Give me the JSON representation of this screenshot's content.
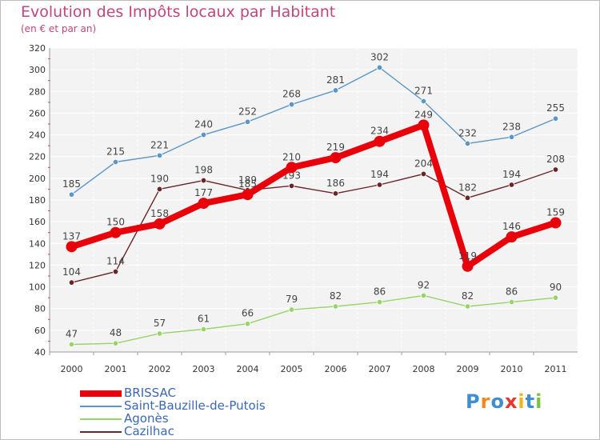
{
  "title": "Evolution des Impôts locaux par Habitant",
  "subtitle": "(en € et par an)",
  "chart_data": {
    "type": "line",
    "title": "Evolution des Impôts locaux par Habitant",
    "ylabel": "(en € et par an)",
    "xlabel": "",
    "ylim": [
      40,
      320
    ],
    "yticks": [
      40,
      60,
      80,
      100,
      120,
      140,
      160,
      180,
      200,
      220,
      240,
      260,
      280,
      300,
      320
    ],
    "categories": [
      "2000",
      "2001",
      "2002",
      "2003",
      "2004",
      "2005",
      "2006",
      "2007",
      "2008",
      "2009",
      "2010",
      "2011"
    ],
    "grid": true,
    "legend": "bottom-left",
    "series": [
      {
        "name": "Saint-Bauzille-de-Putois",
        "color": "#5a96c8",
        "values": [
          185,
          215,
          221,
          240,
          252,
          268,
          281,
          302,
          271,
          232,
          238,
          255
        ]
      },
      {
        "name": "Agonès",
        "color": "#98d468",
        "values": [
          47,
          48,
          57,
          61,
          66,
          79,
          82,
          86,
          92,
          82,
          86,
          90
        ]
      },
      {
        "name": "Cazilhac",
        "color": "#6b2528",
        "values": [
          104,
          114,
          190,
          198,
          189,
          193,
          186,
          194,
          204,
          182,
          194,
          208
        ]
      },
      {
        "name": "BRISSAC",
        "color": "#e8000a",
        "values": [
          137,
          150,
          158,
          177,
          185,
          210,
          219,
          234,
          249,
          119,
          146,
          159
        ]
      }
    ]
  },
  "legend": {
    "items": [
      {
        "label": "BRISSAC",
        "color": "#e8000a"
      },
      {
        "label": "Saint-Bauzille-de-Putois",
        "color": "#5a96c8"
      },
      {
        "label": "Agonès",
        "color": "#98d468"
      },
      {
        "label": "Cazilhac",
        "color": "#6b2528"
      }
    ]
  },
  "logo": {
    "letters": [
      "P",
      "r",
      "o",
      "x",
      "i",
      "t",
      "i"
    ],
    "colors": [
      "#3f8fd0",
      "#f08a1e",
      "#3f8fd0",
      "#e8342a",
      "#f0b41e",
      "#3f8fd0",
      "#7cc242"
    ]
  }
}
